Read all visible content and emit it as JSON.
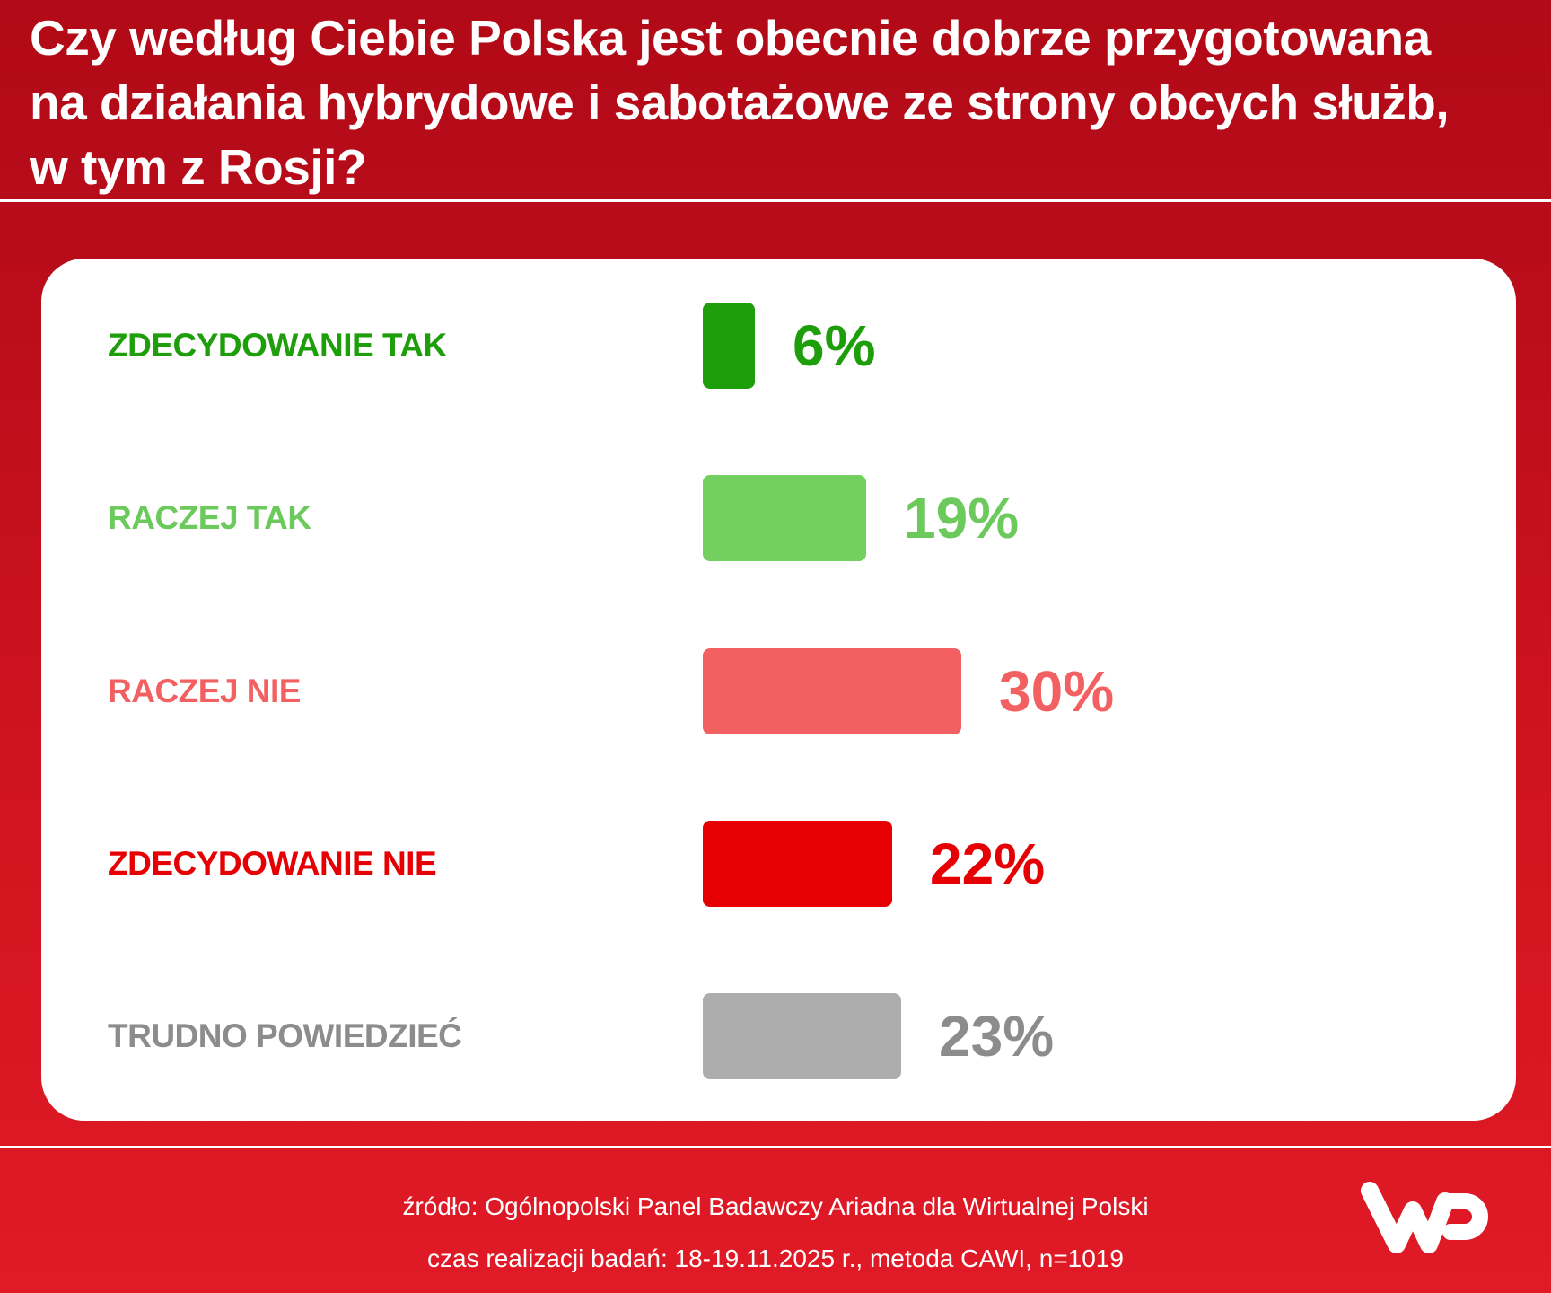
{
  "header": {
    "title_lines": [
      "Czy według Ciebie Polska jest obecnie dobrze przygotowana",
      "na działania hybrydowe i sabotażowe ze strony obcych służb,",
      "w tym z Rosji?"
    ]
  },
  "rows": [
    {
      "label": "ZDECYDOWANIE TAK",
      "value_label": "6%",
      "color": "#1f9e0b",
      "label_color": "#1f9e0b"
    },
    {
      "label": "RACZEJ TAK",
      "value_label": "19%",
      "color": "#72cf60",
      "label_color": "#6cc95c"
    },
    {
      "label": "RACZEJ NIE",
      "value_label": "30%",
      "color": "#f26062",
      "label_color": "#f26062"
    },
    {
      "label": "ZDECYDOWANIE NIE",
      "value_label": "22%",
      "color": "#e60004",
      "label_color": "#e60004"
    },
    {
      "label": "TRUDNO POWIEDZIEĆ",
      "value_label": "23%",
      "color": "#adadad",
      "label_color": "#8c8c8c"
    }
  ],
  "footer": {
    "source": "źródło: Ogólnopolski Panel Badawczy Ariadna dla Wirtualnej Polski",
    "method": "czas realizacji badań: 18-19.11.2025 r., metoda CAWI, n=1019"
  },
  "logo": {
    "icon": "wp-logo-icon",
    "text": "WP"
  },
  "colors": {
    "background_top": "#b20a18",
    "background_bottom": "#e01a26",
    "card": "#ffffff"
  },
  "chart_data": {
    "type": "bar",
    "orientation": "horizontal",
    "title": "Czy według Ciebie Polska jest obecnie dobrze przygotowana na działania hybrydowe i sabotażowe ze strony obcych służb, w tym z Rosji?",
    "categories": [
      "ZDECYDOWANIE TAK",
      "RACZEJ TAK",
      "RACZEJ NIE",
      "ZDECYDOWANIE NIE",
      "TRUDNO POWIEDZIEĆ"
    ],
    "values": [
      6,
      19,
      30,
      22,
      23
    ],
    "unit": "%",
    "colors": [
      "#1f9e0b",
      "#72cf60",
      "#f26062",
      "#e60004",
      "#adadad"
    ],
    "xlabel": "",
    "ylabel": "",
    "grid": false,
    "legend": false,
    "data_labels": true,
    "source": "źródło: Ogólnopolski Panel Badawczy Ariadna dla Wirtualnej Polski",
    "note": "czas realizacji badań: 18-19.11.2025 r., metoda CAWI, n=1019"
  }
}
